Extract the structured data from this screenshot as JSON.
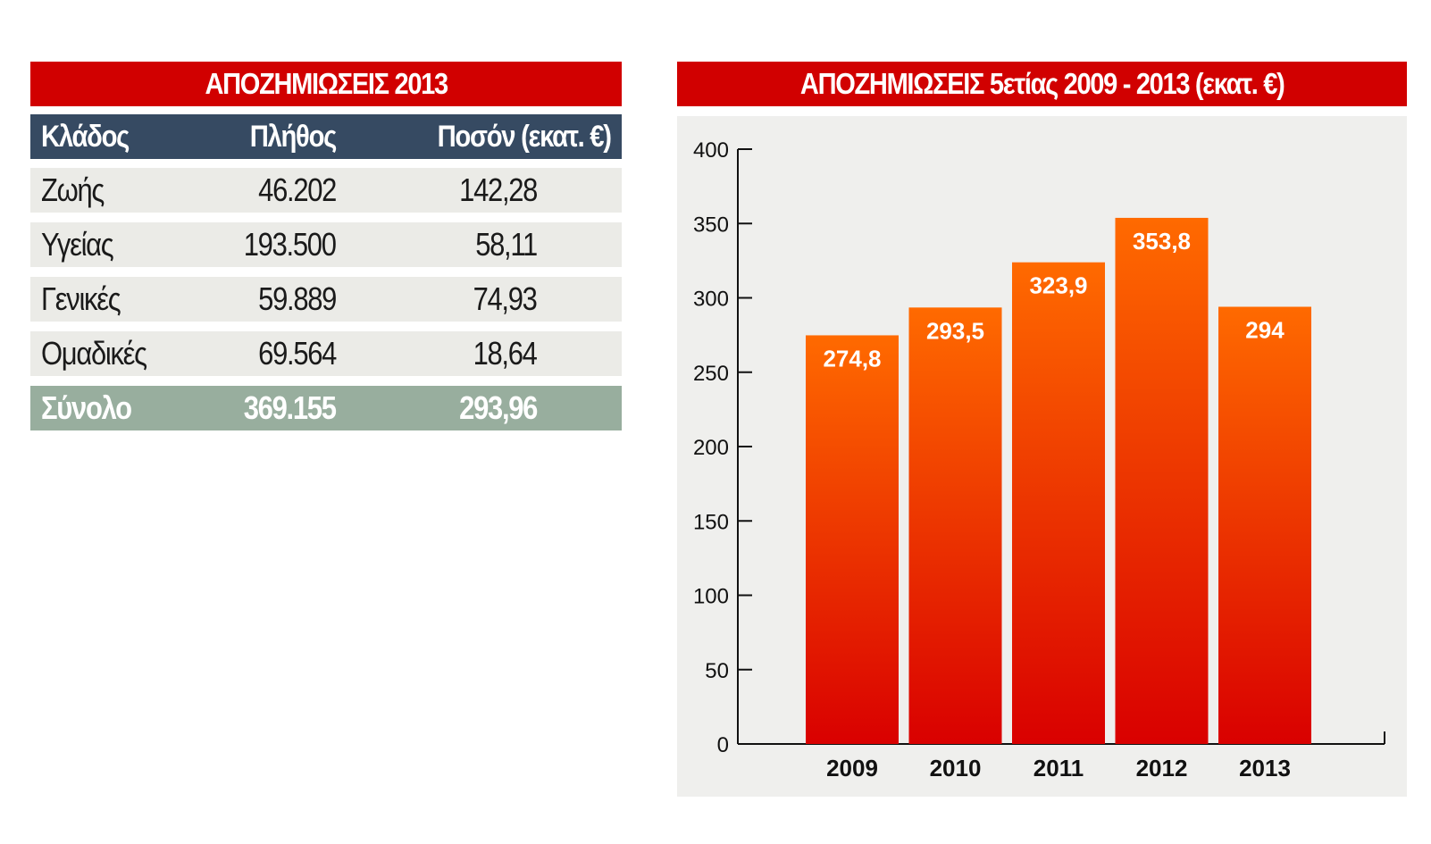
{
  "table": {
    "title": "ΑΠΟΖΗΜΙΩΣΕΙΣ 2013",
    "headers": [
      "Κλάδος",
      "Πλήθος",
      "Ποσόν (εκατ. €)"
    ],
    "rows": [
      [
        "Ζωής",
        "46.202",
        "142,28"
      ],
      [
        "Υγείας",
        "193.500",
        "58,11"
      ],
      [
        "Γενικές",
        "59.889",
        "74,93"
      ],
      [
        "Ομαδικές",
        "69.564",
        "18,64"
      ]
    ],
    "total": [
      "Σύνολο",
      "369.155",
      "293,96"
    ]
  },
  "chart_title": "ΑΠΟΖΗΜΙΩΣΕΙΣ 5ετίας 2009 - 2013 (εκατ. €)",
  "chart_data": {
    "type": "bar",
    "title": "ΑΠΟΖΗΜΙΩΣΕΙΣ 5ετίας 2009 - 2013 (εκατ. €)",
    "categories": [
      "2009",
      "2010",
      "2011",
      "2012",
      "2013"
    ],
    "values": [
      274.8,
      293.5,
      323.9,
      353.8,
      294
    ],
    "value_labels": [
      "274,8",
      "293,5",
      "323,9",
      "353,8",
      "294"
    ],
    "ylim": [
      0,
      400
    ],
    "yticks": [
      0,
      50,
      100,
      150,
      200,
      250,
      300,
      350,
      400
    ],
    "grid": false,
    "bar_color_top": "#ff6a00",
    "bar_color_bottom": "#d90000"
  },
  "colors": {
    "banner": "#d10000",
    "table_header": "#364a62",
    "row_background": "#ebebe7",
    "total_row": "#98ae9e",
    "chart_background": "#efefed"
  }
}
